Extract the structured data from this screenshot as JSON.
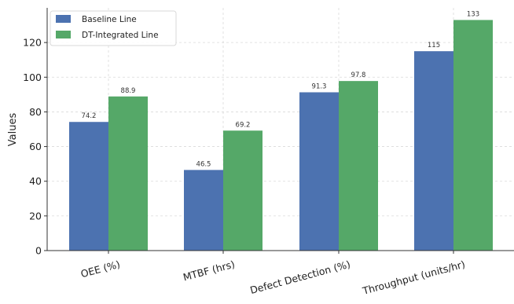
{
  "chart_data": {
    "type": "bar",
    "title": "",
    "xlabel": "",
    "ylabel": "Values",
    "categories": [
      "OEE (%)",
      "MTBF (hrs)",
      "Defect Detection (%)",
      "Throughput (units/hr)"
    ],
    "series": [
      {
        "name": "Baseline Line",
        "color": "#4c72b0",
        "values": [
          74.2,
          46.5,
          91.3,
          115
        ],
        "labels": [
          "74.2",
          "46.5",
          "91.3",
          "115"
        ]
      },
      {
        "name": "DT-Integrated Line",
        "color": "#55a868",
        "values": [
          88.9,
          69.2,
          97.8,
          133
        ],
        "labels": [
          "88.9",
          "69.2",
          "97.8",
          "133"
        ]
      }
    ],
    "ylim": [
      0,
      140
    ],
    "yticks": [
      0,
      20,
      40,
      60,
      80,
      100,
      120
    ],
    "grid": true,
    "legend_position": "top-left"
  }
}
